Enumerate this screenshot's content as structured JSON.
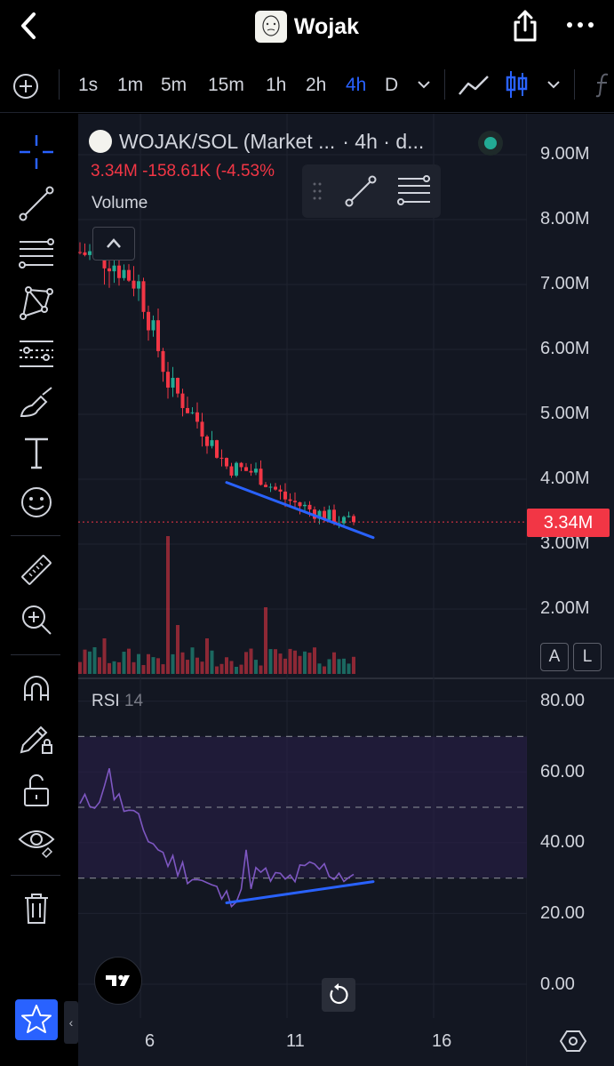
{
  "nav": {
    "title": "Wojak",
    "back_icon": "chevron-left-icon",
    "share_icon": "share-icon",
    "more_icon": "more-horizontal-icon"
  },
  "toolbar": {
    "intervals": [
      "1s",
      "1m",
      "5m",
      "15m",
      "1h",
      "2h",
      "4h",
      "D"
    ],
    "active_interval": "4h"
  },
  "legend": {
    "symbol": "WOJAK/SOL (Market ...",
    "interval": "· 4h · d...",
    "price": "3.34M",
    "change": "-158.61K (-4.53%",
    "volume_label": "Volume"
  },
  "price_axis": {
    "labels": [
      "9.00M",
      "8.00M",
      "7.00M",
      "6.00M",
      "5.00M",
      "4.00M",
      "3.00M",
      "2.00M"
    ],
    "last_price": "3.34M",
    "auto_label": "A",
    "log_label": "L"
  },
  "rsi": {
    "label": "RSI",
    "period": "14",
    "axis_labels": [
      "80.00",
      "60.00",
      "40.00",
      "20.00",
      "0.00"
    ]
  },
  "time_axis": {
    "labels": [
      "6",
      "11",
      "16"
    ]
  },
  "colors": {
    "up": "#22ab94",
    "down": "#f23645",
    "accent": "#2962ff",
    "rsi_line": "#7e57c2",
    "trendline": "#2962ff"
  },
  "chart_data": [
    {
      "type": "candlestick",
      "title": "WOJAK/SOL (Market ... · 4h",
      "x": [
        "4",
        "5",
        "6",
        "7",
        "8",
        "9",
        "10",
        "11",
        "12",
        "13"
      ],
      "trend": [
        7.5,
        7.4,
        7.0,
        5.5,
        4.9,
        4.2,
        4.1,
        3.7,
        3.5,
        3.34
      ],
      "ylim": [
        1.5,
        9.5
      ],
      "y_unit": "M",
      "last_price": 3.34,
      "trendline": {
        "from": [
          "9",
          3.95
        ],
        "to": [
          "14",
          3.1
        ]
      }
    },
    {
      "type": "line",
      "title": "RSI 14",
      "x": [
        "4",
        "5",
        "6",
        "7",
        "8",
        "9",
        "10",
        "11",
        "12",
        "13"
      ],
      "values": [
        50,
        55,
        45,
        35,
        30,
        24,
        31,
        29,
        33,
        31
      ],
      "ylim": [
        0,
        80
      ],
      "bands": [
        70,
        50,
        30
      ],
      "trendline": {
        "from": [
          "9",
          23
        ],
        "to": [
          "14",
          29
        ]
      }
    }
  ]
}
